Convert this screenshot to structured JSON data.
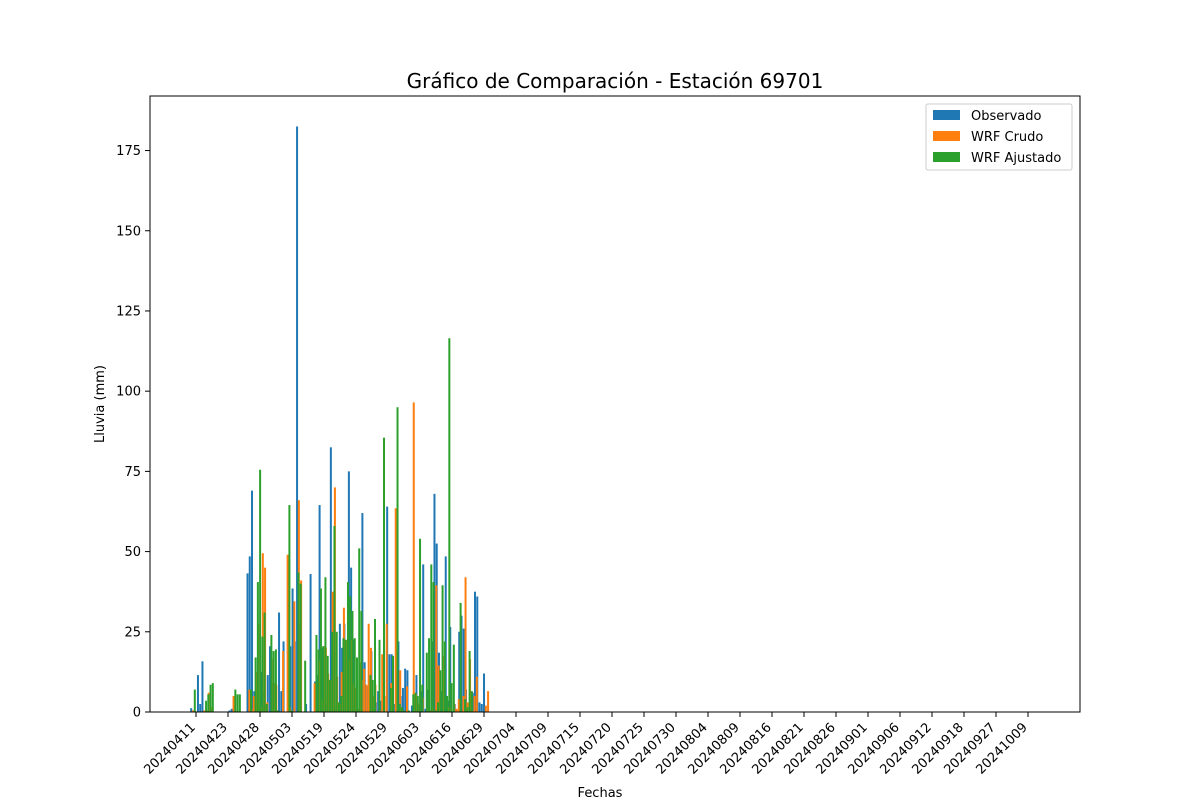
{
  "chart_data": {
    "type": "bar",
    "title": "Gráfico de Comparación - Estación 69701",
    "xlabel": "Fechas",
    "ylabel": "Lluvia (mm)",
    "ylim": [
      0,
      192
    ],
    "yticks": [
      0,
      25,
      50,
      75,
      100,
      125,
      150,
      175
    ],
    "xtick_labels": [
      "20240411",
      "20240423",
      "20240428",
      "20240503",
      "20240519",
      "20240524",
      "20240529",
      "20240603",
      "20240616",
      "20240629",
      "20240704",
      "20240709",
      "20240715",
      "20240720",
      "20240725",
      "20240730",
      "20240804",
      "20240809",
      "20240816",
      "20240821",
      "20240826",
      "20240901",
      "20240906",
      "20240912",
      "20240918",
      "20240927",
      "20241009"
    ],
    "legend_position": "top-right",
    "grid": false,
    "colors": {
      "Observado": "#1f77b4",
      "WRF Crudo": "#ff7f0e",
      "WRF Ajustado": "#2ca02c"
    },
    "series": [
      {
        "name": "Observado",
        "values": [
          1.2,
          0,
          0,
          11.5,
          2.5,
          15.8,
          0,
          0,
          0,
          0,
          0,
          0,
          0,
          0,
          0,
          0,
          0,
          0.5,
          1,
          0,
          0,
          0,
          0,
          0,
          0,
          43.2,
          48.5,
          69,
          6.5,
          5.5,
          1.5,
          12.5,
          6.5,
          2.5,
          11.5,
          20.5,
          9,
          8,
          0.5,
          31,
          6.5,
          22,
          0,
          0.5,
          20.5,
          38.5,
          22,
          182.5,
          27.5,
          0,
          0,
          2.5,
          0,
          43,
          0,
          9.5,
          11.5,
          64.5,
          20,
          0,
          2.5,
          10,
          82.5,
          24.5,
          2,
          3,
          27.5,
          20,
          27.5,
          14.5,
          75,
          45,
          22.5,
          6,
          1,
          13,
          62,
          15.5,
          8,
          10,
          19,
          2,
          3,
          6.5,
          3.5,
          5,
          0,
          64,
          18,
          18,
          2.5,
          0,
          22,
          5,
          7.5,
          13.5,
          13,
          0,
          2,
          3,
          11.5,
          2,
          6.5,
          46,
          1,
          7,
          0,
          22,
          68,
          52.5,
          18.5,
          6.5,
          10.5,
          48.5,
          3.5,
          26.5,
          0,
          2.5,
          0.5,
          25,
          30,
          26,
          7,
          0,
          6,
          6,
          37.5,
          36,
          3,
          2.5,
          12
        ]
      },
      {
        "name": "WRF Crudo",
        "values": [
          0.5,
          0,
          0,
          0,
          0,
          0.5,
          0.5,
          6,
          1.5,
          0,
          0,
          0,
          0,
          0,
          0,
          0,
          0,
          0,
          5,
          0,
          0,
          0,
          0,
          0,
          0,
          7,
          1,
          5,
          12.5,
          27.5,
          1.5,
          49.5,
          45,
          3,
          0,
          16.5,
          9,
          8.5,
          0,
          0,
          19,
          0,
          49,
          1.5,
          0,
          34.5,
          0,
          66,
          41,
          0,
          0,
          0,
          0,
          0,
          9,
          0,
          16,
          4,
          20.5,
          20,
          12,
          10,
          37.5,
          70,
          11,
          2.5,
          12.5,
          32.5,
          22.5,
          16.5,
          22.5,
          9,
          7.5,
          1,
          15.5,
          10,
          13.5,
          8.5,
          27.5,
          20,
          5,
          8.5,
          0,
          0.5,
          18,
          5,
          27.5,
          0,
          9,
          0,
          63.5,
          0,
          13,
          0,
          0,
          8,
          0,
          0,
          96.5,
          5.5,
          2.5,
          0,
          4.5,
          0,
          1,
          0.5,
          1.5,
          0.5,
          39.5,
          14.5,
          0,
          17.5,
          0,
          1.5,
          1.5,
          0,
          2.5,
          1,
          4,
          0,
          5,
          42,
          3,
          16.5,
          0.5,
          5,
          11,
          0,
          0,
          0,
          2,
          6.5
        ]
      },
      {
        "name": "WRF Ajustado",
        "values": [
          7,
          0,
          0,
          0,
          0,
          3.5,
          5.5,
          8.5,
          9,
          0,
          0,
          0,
          0,
          0,
          0,
          0,
          0,
          0,
          7,
          5.5,
          5.5,
          0,
          0,
          0,
          0,
          7,
          0,
          17,
          40.5,
          75.5,
          23.5,
          31,
          2.5,
          0,
          24,
          19,
          19.5,
          0.5,
          0,
          0,
          0,
          0,
          64.5,
          0.5,
          0,
          0,
          43.5,
          40,
          0,
          16,
          0,
          0,
          0,
          0,
          24,
          19.5,
          38.5,
          20.5,
          42,
          17.5,
          10,
          25,
          58,
          25,
          3,
          5,
          23,
          22.5,
          40.5,
          36,
          31.5,
          23,
          17,
          51,
          31.5,
          0,
          0,
          0,
          11.5,
          10,
          29,
          0,
          22.5,
          0,
          85.5,
          0,
          0,
          7.5,
          17.5,
          0,
          95,
          2.5,
          1.5,
          0.5,
          0,
          0.5,
          0,
          5.5,
          6,
          5,
          54,
          8.5,
          0,
          18.5,
          23,
          46,
          40.5,
          0.5,
          3,
          13,
          39.5,
          22,
          5,
          116.5,
          9,
          21,
          0,
          0,
          34,
          0,
          4,
          1.5,
          19,
          6.5
        ]
      }
    ]
  }
}
